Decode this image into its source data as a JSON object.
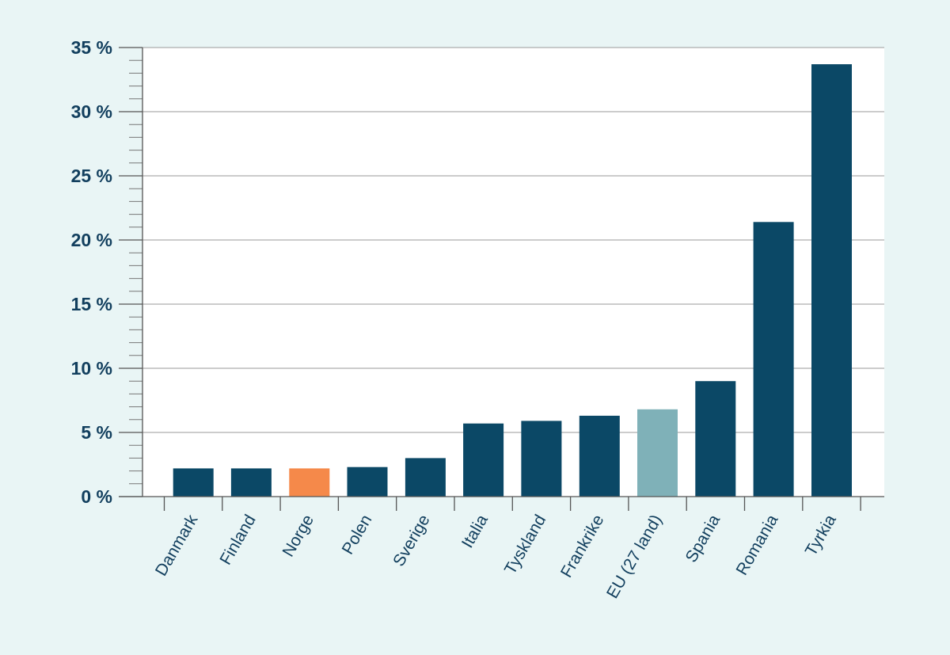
{
  "chart_data": {
    "type": "bar",
    "title": "",
    "xlabel": "",
    "ylabel": "",
    "categories": [
      "Danmark",
      "Finland",
      "Norge",
      "Polen",
      "Sverige",
      "Italia",
      "Tyskland",
      "Frankrike",
      "EU (27 land)",
      "Spania",
      "Romania",
      "Tyrkia"
    ],
    "values": [
      2.2,
      2.2,
      2.2,
      2.3,
      3.0,
      5.7,
      5.9,
      6.3,
      6.8,
      9.0,
      21.4,
      33.7
    ],
    "bar_colors": [
      "#0b4866",
      "#0b4866",
      "#f5894a",
      "#0b4866",
      "#0b4866",
      "#0b4866",
      "#0b4866",
      "#0b4866",
      "#7fb1b8",
      "#0b4866",
      "#0b4866",
      "#0b4866"
    ],
    "ylim": [
      0,
      35
    ],
    "ytick_values": [
      0,
      5,
      10,
      15,
      20,
      25,
      30,
      35
    ],
    "ytick_labels": [
      "0 %",
      "5 %",
      "10 %",
      "15 %",
      "20 %",
      "25 %",
      "30 %",
      "35 %"
    ],
    "grid": true,
    "legend": "none"
  },
  "colors": {
    "background": "#e9f5f5",
    "plot_background": "#ffffff",
    "primary_bar": "#0b4866",
    "highlight_bar": "#f5894a",
    "eu_bar": "#7fb1b8",
    "text": "#123f5e",
    "grid": "#9a9a9a",
    "axis": "#555555"
  }
}
